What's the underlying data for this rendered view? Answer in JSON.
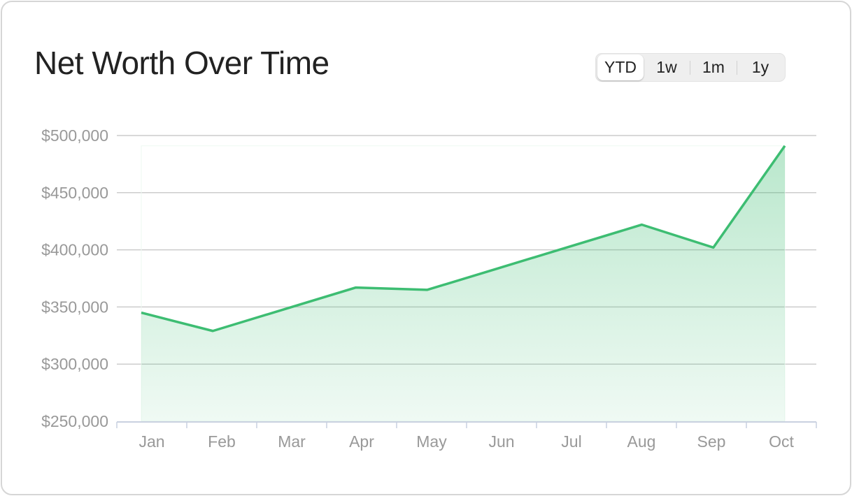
{
  "title": "Net Worth Over Time",
  "range_toggle": {
    "options": [
      "YTD",
      "1w",
      "1m",
      "1y"
    ],
    "selected": "YTD"
  },
  "colors": {
    "line": "#3dbd72",
    "fill": "#3dbd72",
    "grid": "#cccccc",
    "axis": "#c9d1e0"
  },
  "chart_data": {
    "type": "area",
    "title": "Net Worth Over Time",
    "categories": [
      "Jan",
      "Feb",
      "Mar",
      "Apr",
      "May",
      "Jun",
      "Jul",
      "Aug",
      "Sep",
      "Oct"
    ],
    "values": [
      345000,
      329000,
      348000,
      367000,
      365000,
      384000,
      403000,
      422000,
      402000,
      491000
    ],
    "ylim": [
      250000,
      500000
    ],
    "yticks": [
      250000,
      300000,
      350000,
      400000,
      450000,
      500000
    ],
    "ytick_labels": [
      "$250,000",
      "$300,000",
      "$350,000",
      "$400,000",
      "$450,000",
      "$500,000"
    ],
    "grid": true,
    "xlabel": "",
    "ylabel": ""
  }
}
